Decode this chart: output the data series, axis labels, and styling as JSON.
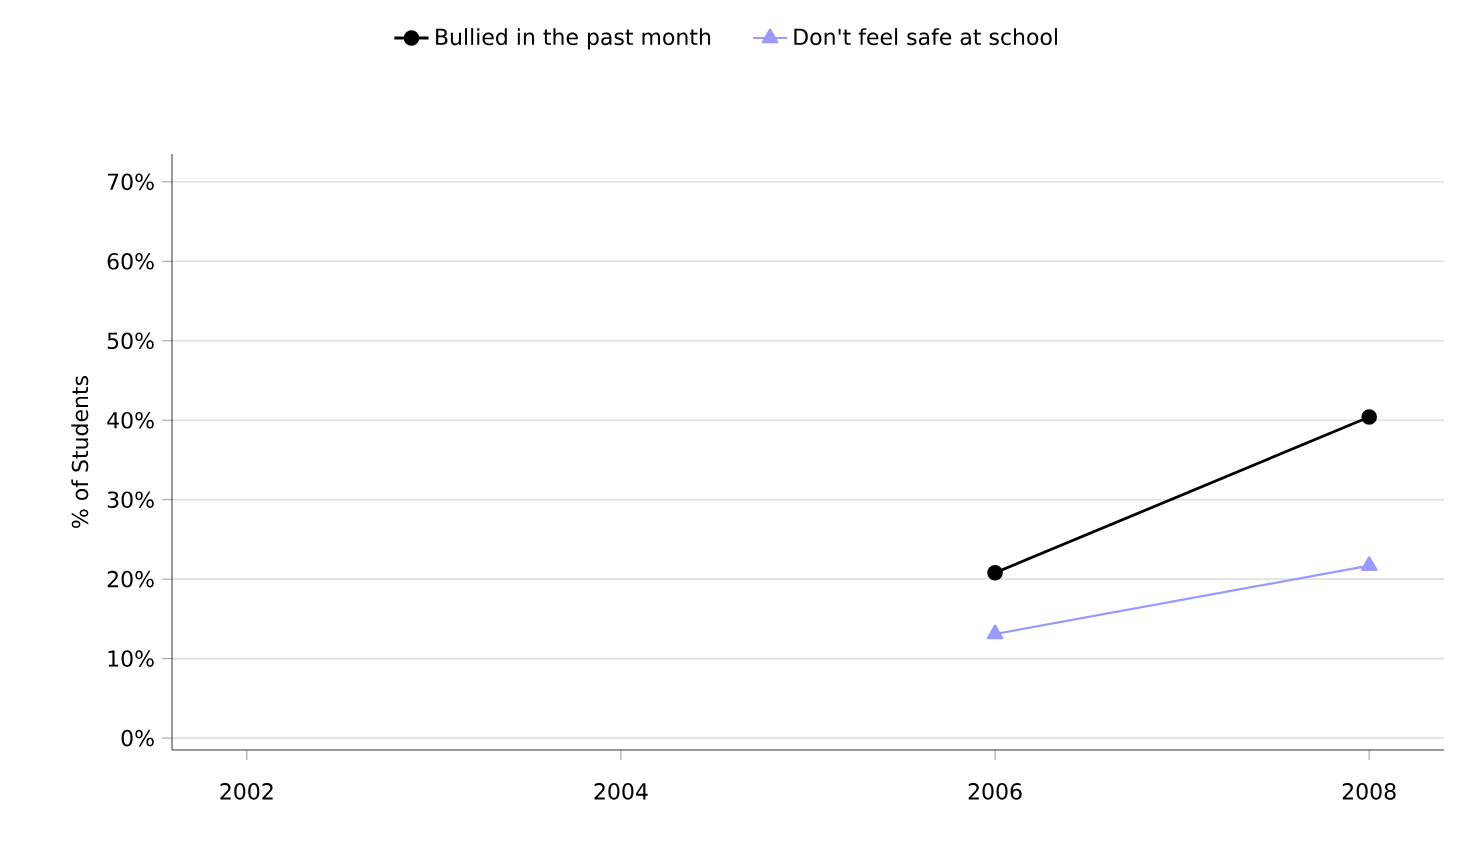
{
  "chart_data": {
    "type": "line",
    "ylabel": "% of Students",
    "x": [
      2006,
      2008
    ],
    "series": [
      {
        "name": "Bullied in the past month",
        "color": "#000000",
        "marker": "circle",
        "values": [
          20.8,
          40.4
        ]
      },
      {
        "name": "Don't feel safe at school",
        "color": "#9999ff",
        "marker": "triangle",
        "values": [
          13.1,
          21.7
        ]
      }
    ],
    "xlim": [
      2001.6,
      2008.4
    ],
    "xticks": [
      2002,
      2004,
      2006,
      2008
    ],
    "ylim": [
      -1.5,
      73.5
    ],
    "yticks": [
      {
        "value": 0,
        "label": "0%"
      },
      {
        "value": 10,
        "label": "10%"
      },
      {
        "value": 20,
        "label": "20%"
      },
      {
        "value": 30,
        "label": "30%"
      },
      {
        "value": 40,
        "label": "40%"
      },
      {
        "value": 50,
        "label": "50%"
      },
      {
        "value": 60,
        "label": "60%"
      },
      {
        "value": 70,
        "label": "70%"
      }
    ],
    "grid": "y",
    "legend": "top",
    "line_style": "solid"
  }
}
